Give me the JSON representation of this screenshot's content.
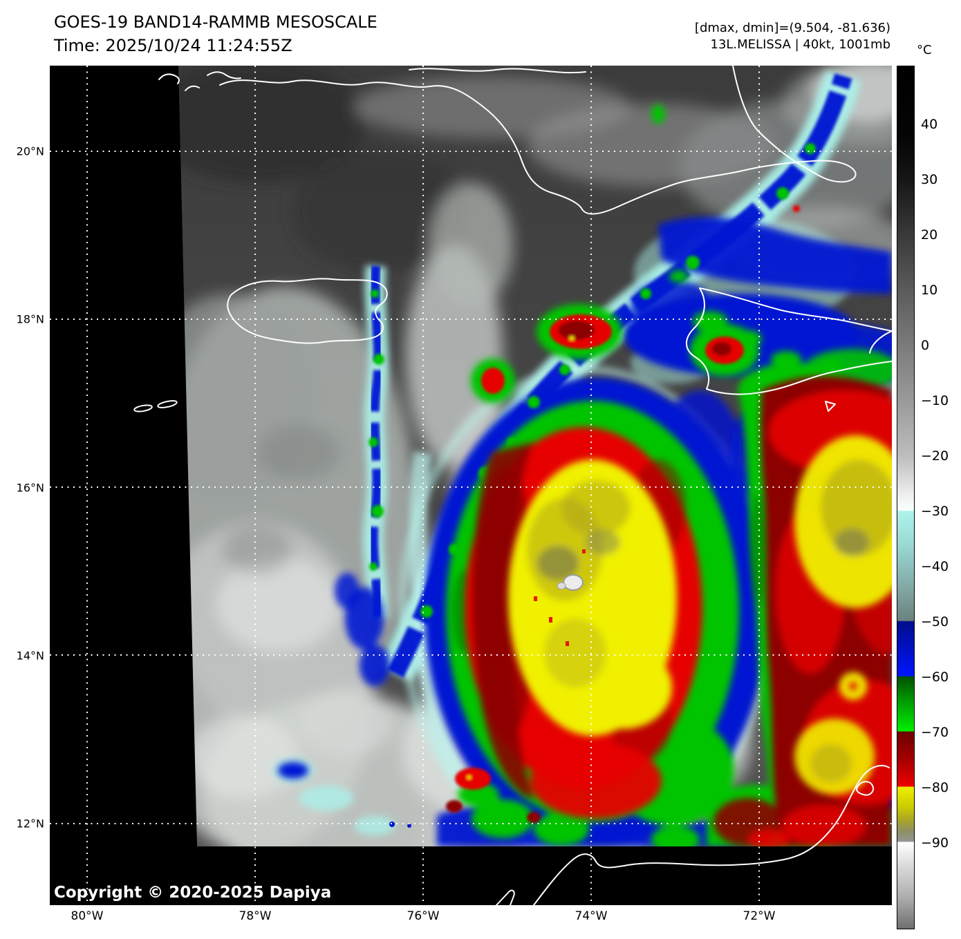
{
  "header": {
    "title": "GOES-19 BAND14-RAMMB MESOSCALE",
    "time_line": "Time: 2025/10/24 11:24:55Z",
    "range_line": "[dmax, dmin]=(9.504, -81.636)",
    "storm_line": "13L.MELISSA | 40kt, 1001mb"
  },
  "colorbar": {
    "unit": "°C",
    "tick_values": [
      40,
      30,
      20,
      10,
      0,
      -10,
      -20,
      -30,
      -40,
      -50,
      -60,
      -70,
      -80,
      -90
    ],
    "gradient_stops": [
      [
        50.6,
        "#000000"
      ],
      [
        38,
        "#050505"
      ],
      [
        30,
        "#161616"
      ],
      [
        20,
        "#3a3a3a"
      ],
      [
        10,
        "#5b5b5b"
      ],
      [
        0,
        "#7b7b7b"
      ],
      [
        -10,
        "#9a9a9a"
      ],
      [
        -20,
        "#bdbdbd"
      ],
      [
        -27,
        "#eeeeee"
      ],
      [
        -29.8,
        "#fbffff"
      ],
      [
        -30,
        "#aef2ec"
      ],
      [
        -36,
        "#9ad9d4"
      ],
      [
        -43,
        "#84adaa"
      ],
      [
        -49.8,
        "#6b8280"
      ],
      [
        -50,
        "#000e8c"
      ],
      [
        -55,
        "#0011c4"
      ],
      [
        -59.8,
        "#0015ff"
      ],
      [
        -60,
        "#005200"
      ],
      [
        -65,
        "#00a400"
      ],
      [
        -69.8,
        "#00ee00"
      ],
      [
        -70,
        "#6e0000"
      ],
      [
        -75,
        "#a60000"
      ],
      [
        -79.8,
        "#ee0000"
      ],
      [
        -80,
        "#eeee00"
      ],
      [
        -83.5,
        "#cccc00"
      ],
      [
        -86,
        "#a8a428"
      ],
      [
        -88,
        "#8f8f66"
      ],
      [
        -89.8,
        "#949494"
      ],
      [
        -90,
        "#ffffff"
      ],
      [
        -95,
        "#d4d4d4"
      ],
      [
        -100,
        "#adadad"
      ],
      [
        -105.6,
        "#707070"
      ]
    ]
  },
  "axes": {
    "lat_labels": [
      "20°N",
      "18°N",
      "16°N",
      "14°N",
      "12°N"
    ],
    "lon_labels": [
      "80°W",
      "78°W",
      "76°W",
      "74°W",
      "72°W"
    ]
  },
  "footer": {
    "copyright": "Copyright © 2020-2025 Dapiya"
  },
  "palette": {
    "cyan": "#aaf0e8",
    "blue": "#0014d2",
    "navy": "#000e8c",
    "green": "#00c400",
    "green-dark": "#007100",
    "red": "#e60000",
    "red-dark": "#8c0000",
    "yellow": "#f0f000",
    "olive": "#b2a81c",
    "olive-dark": "#6f6f52",
    "coast": "#ffffff",
    "grid": "#ffffff"
  }
}
